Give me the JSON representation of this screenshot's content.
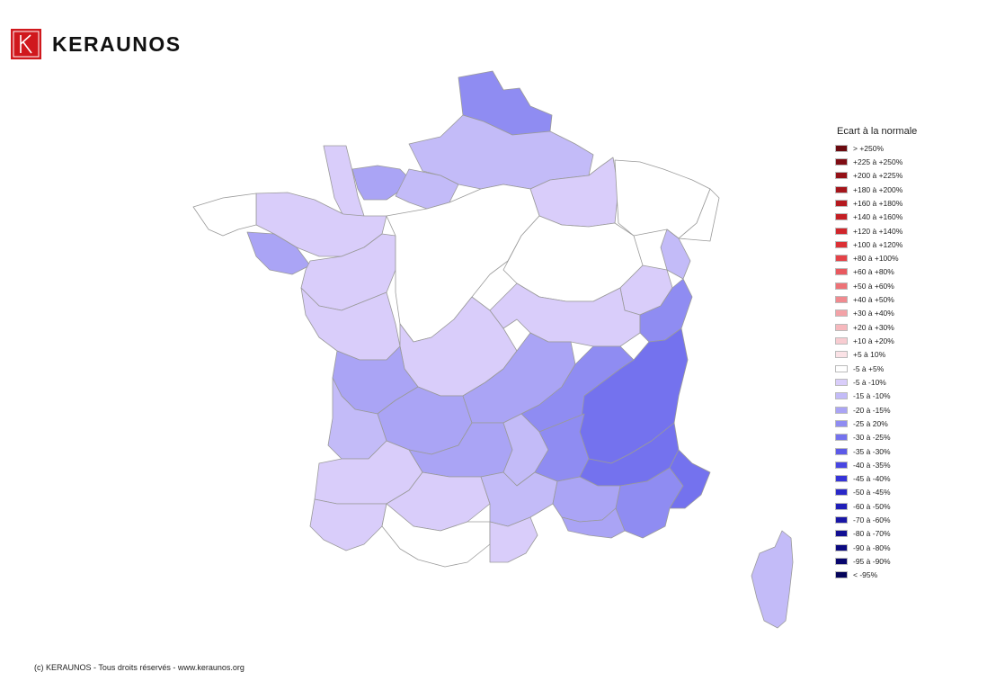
{
  "brand": {
    "name": "KERAUNOS",
    "logo_letter": "K",
    "logo_color": "#d0181d"
  },
  "legend": {
    "title": "Ecart à la normale",
    "items": [
      {
        "label": "> +250%",
        "color": "#6b0a10"
      },
      {
        "label": "+225 à +250%",
        "color": "#7f0d14"
      },
      {
        "label": "+200 à +225%",
        "color": "#941117"
      },
      {
        "label": "+180 à +200%",
        "color": "#a5151b"
      },
      {
        "label": "+160 à +180%",
        "color": "#b5191f"
      },
      {
        "label": "+140 à +160%",
        "color": "#c41e24"
      },
      {
        "label": "+120 à +140%",
        "color": "#d0262b"
      },
      {
        "label": "+100 à +120%",
        "color": "#dc3035"
      },
      {
        "label": "+80 à +100%",
        "color": "#e44248"
      },
      {
        "label": "+60 à +80%",
        "color": "#e9595f"
      },
      {
        "label": "+50 à +60%",
        "color": "#ed7277"
      },
      {
        "label": "+40 à +50%",
        "color": "#f08a8f"
      },
      {
        "label": "+30 à +40%",
        "color": "#f3a2a7"
      },
      {
        "label": "+20 à +30%",
        "color": "#f6b8bd"
      },
      {
        "label": "+10 à +20%",
        "color": "#f8ccd1"
      },
      {
        "label": "+5 à 10%",
        "color": "#fbe2e6"
      },
      {
        "label": "-5 à +5%",
        "color": "#ffffff"
      },
      {
        "label": "-5 à -10%",
        "color": "#d9cdfa"
      },
      {
        "label": "-15 à -10%",
        "color": "#c3bbf8"
      },
      {
        "label": "-20 à -15%",
        "color": "#aaa4f5"
      },
      {
        "label": "-25 à 20%",
        "color": "#8f8cf2"
      },
      {
        "label": "-30 à -25%",
        "color": "#7472ee"
      },
      {
        "label": "-35 à -30%",
        "color": "#5c5ae8"
      },
      {
        "label": "-40 à -35%",
        "color": "#4846e2"
      },
      {
        "label": "-45 à -40%",
        "color": "#3634d8"
      },
      {
        "label": "-50 à -45%",
        "color": "#2a28c8"
      },
      {
        "label": "-60 à -50%",
        "color": "#201eb8"
      },
      {
        "label": "-70 à -60%",
        "color": "#1916a6"
      },
      {
        "label": "-80 à -70%",
        "color": "#120f93"
      },
      {
        "label": "-90 à -80%",
        "color": "#0c0a80"
      },
      {
        "label": "-95 à -90%",
        "color": "#08066d"
      },
      {
        "label": "< -95%",
        "color": "#05045a"
      }
    ]
  },
  "map": {
    "regions": [
      {
        "name": "nord",
        "color": "#8f8cf2"
      },
      {
        "name": "picardie",
        "color": "#c3bbf8"
      },
      {
        "name": "normandie-ouest",
        "color": "#d9cdfa"
      },
      {
        "name": "normandie-centre",
        "color": "#aaa4f5"
      },
      {
        "name": "normandie-est",
        "color": "#c3bbf8"
      },
      {
        "name": "champagne",
        "color": "#d9cdfa"
      },
      {
        "name": "lorraine",
        "color": "#ffffff"
      },
      {
        "name": "alsace",
        "color": "#ffffff"
      },
      {
        "name": "bretagne-nord",
        "color": "#d9cdfa"
      },
      {
        "name": "bretagne-finistere",
        "color": "#ffffff"
      },
      {
        "name": "morbihan",
        "color": "#aaa4f5"
      },
      {
        "name": "pays-de-loire",
        "color": "#d9cdfa"
      },
      {
        "name": "centre",
        "color": "#ffffff"
      },
      {
        "name": "bourgogne",
        "color": "#ffffff"
      },
      {
        "name": "franche-comte",
        "color": "#d9cdfa"
      },
      {
        "name": "doubs",
        "color": "#c3bbf8"
      },
      {
        "name": "poitou",
        "color": "#d9cdfa"
      },
      {
        "name": "limousin",
        "color": "#d9cdfa"
      },
      {
        "name": "rhone-ain",
        "color": "#d9cdfa"
      },
      {
        "name": "haute-savoie",
        "color": "#8f8cf2"
      },
      {
        "name": "charente",
        "color": "#aaa4f5"
      },
      {
        "name": "dordogne",
        "color": "#aaa4f5"
      },
      {
        "name": "auvergne",
        "color": "#aaa4f5"
      },
      {
        "name": "loire",
        "color": "#8f8cf2"
      },
      {
        "name": "isere-savoie",
        "color": "#7472ee"
      },
      {
        "name": "gironde",
        "color": "#c3bbf8"
      },
      {
        "name": "lot",
        "color": "#aaa4f5"
      },
      {
        "name": "aveyron",
        "color": "#c3bbf8"
      },
      {
        "name": "ardeche",
        "color": "#8f8cf2"
      },
      {
        "name": "drome-alpes",
        "color": "#7472ee"
      },
      {
        "name": "var",
        "color": "#8f8cf2"
      },
      {
        "name": "alpes-maritimes",
        "color": "#7472ee"
      },
      {
        "name": "landes",
        "color": "#d9cdfa"
      },
      {
        "name": "gers",
        "color": "#d9cdfa"
      },
      {
        "name": "herault",
        "color": "#c3bbf8"
      },
      {
        "name": "gard",
        "color": "#aaa4f5"
      },
      {
        "name": "bouches-du-rhone",
        "color": "#aaa4f5"
      },
      {
        "name": "pyrenees-atlantiques",
        "color": "#d9cdfa"
      },
      {
        "name": "pyrenees-centre",
        "color": "#ffffff"
      },
      {
        "name": "aude-pyrenees-orientales",
        "color": "#d9cdfa"
      },
      {
        "name": "corse",
        "color": "#c3bbf8"
      }
    ]
  },
  "footer": {
    "copyright": "(c) KERAUNOS - Tous droits réservés - www.keraunos.org"
  }
}
